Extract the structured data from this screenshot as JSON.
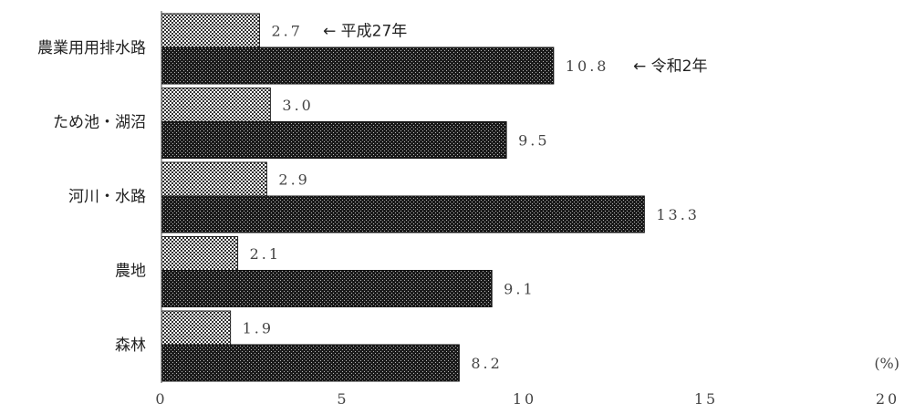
{
  "chart_data": {
    "type": "bar",
    "orientation": "horizontal",
    "categories": [
      "農業用用排水路",
      "ため池・湖沼",
      "河川・水路",
      "農地",
      "森林"
    ],
    "series": [
      {
        "name": "平成27年",
        "values": [
          2.7,
          3.0,
          2.9,
          2.1,
          1.9
        ],
        "value_labels": [
          "2.7",
          "3.0",
          "2.9",
          "2.1",
          "1.9"
        ],
        "pattern": "checkerboard"
      },
      {
        "name": "令和2年",
        "values": [
          10.8,
          9.5,
          13.3,
          9.1,
          8.2
        ],
        "value_labels": [
          "10.8",
          "9.5",
          "13.3",
          "9.1",
          "8.2"
        ],
        "pattern": "dark-dotted"
      }
    ],
    "annotations": [
      "← 平成27年",
      "← 令和2年"
    ],
    "xlim": [
      0,
      20
    ],
    "xticks": [
      0,
      5,
      10,
      15,
      20
    ],
    "x_unit": "(%)",
    "grid": false,
    "colors": {
      "bar_dark": "#1a1a1a",
      "bar_dot": "#b8b8b8",
      "check_dark": "#333333",
      "check_light": "#ffffff",
      "text": "#222222",
      "axis": "#444444"
    }
  }
}
